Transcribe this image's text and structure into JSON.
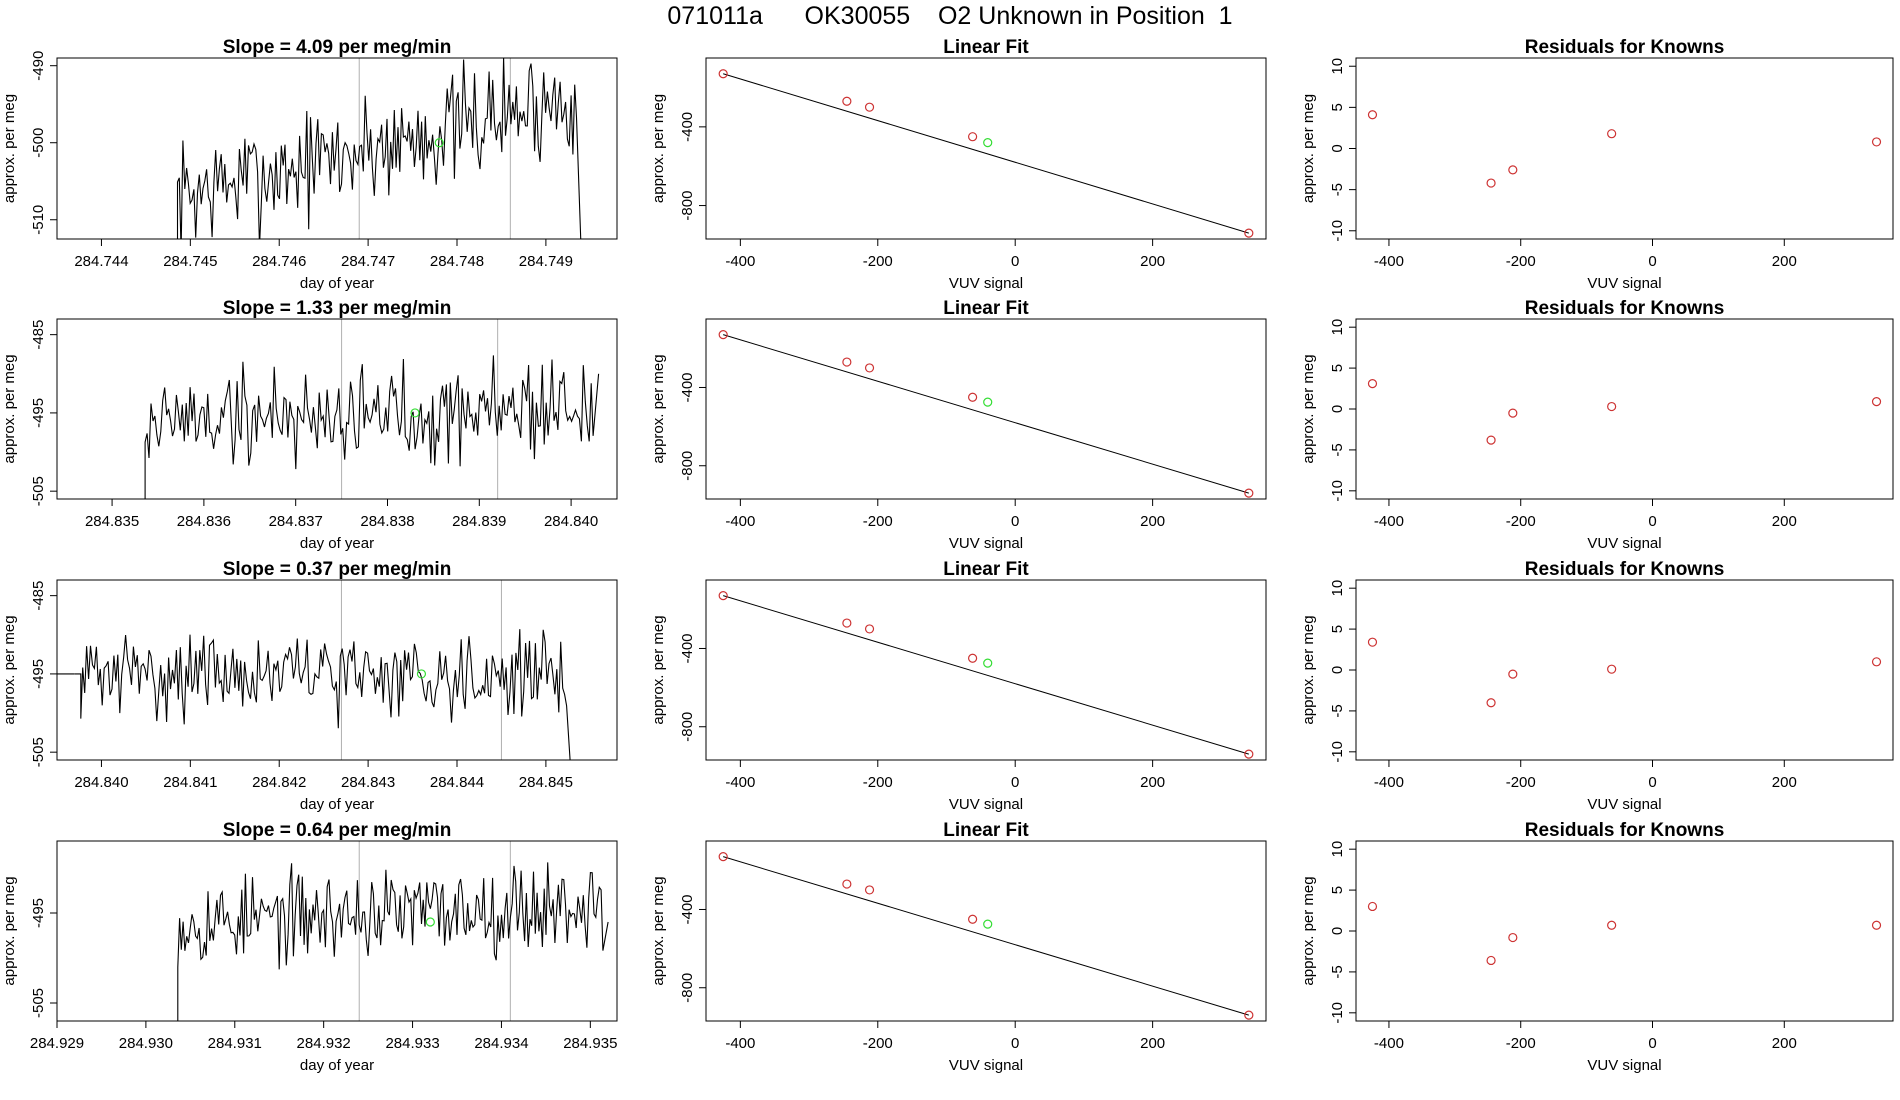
{
  "title": "071011a      OK30055    O2 Unknown in Position  1",
  "colors": {
    "axis": "#000000",
    "series": "#000000",
    "vline": "#b0b0b0",
    "known": "#cd3333",
    "unknown": "#33dd33"
  },
  "chart_data": [
    {
      "type": "line",
      "panel": "time-series",
      "row": 1,
      "title": "Slope =  4.09  per meg/min",
      "xlabel": "day of year",
      "ylabel": "approx. per meg",
      "xlim": [
        284.7435,
        284.7498
      ],
      "ylim": [
        -512.5,
        -489
      ],
      "xticks": [
        284.744,
        284.745,
        284.746,
        284.747,
        284.748,
        284.749
      ],
      "xtick_labels": [
        "284.744",
        "284.745",
        "284.746",
        "284.747",
        "284.748",
        "284.749"
      ],
      "yticks": [
        -510,
        -500,
        -490
      ],
      "ytick_labels": [
        "-510",
        "-500",
        "-490"
      ],
      "vlines": [
        284.7469,
        284.7486
      ],
      "unknown_point": {
        "x": 284.7478,
        "y": -500
      },
      "series": {
        "x_start": 284.7448,
        "x_end": 284.7494,
        "start_y": -514,
        "end_y": -515,
        "base": -507,
        "trend_end": -494,
        "noise": 4.5,
        "count": 220,
        "seed": 7
      }
    },
    {
      "type": "scatter",
      "panel": "linear-fit",
      "row": 1,
      "title": "Linear Fit",
      "xlabel": "VUV signal",
      "ylabel": "approx. per meg",
      "xlim": [
        -450,
        365
      ],
      "ylim": [
        -970,
        -50
      ],
      "xticks": [
        -400,
        -200,
        0,
        200
      ],
      "xtick_labels": [
        "-400",
        "-200",
        "0",
        "200"
      ],
      "yticks": [
        -800,
        -400
      ],
      "ytick_labels": [
        "-800",
        "-400"
      ],
      "fit_line": {
        "x": [
          -425,
          340
        ],
        "y": [
          -130,
          -940
        ]
      },
      "knowns": [
        {
          "x": -425,
          "y": -130
        },
        {
          "x": -245,
          "y": -270
        },
        {
          "x": -212,
          "y": -300
        },
        {
          "x": -62,
          "y": -450
        }
      ],
      "known_end": {
        "x": 340,
        "y": -940
      },
      "unknown": {
        "x": -40,
        "y": -480
      }
    },
    {
      "type": "scatter",
      "panel": "residuals",
      "row": 1,
      "title": "Residuals for Knowns",
      "xlabel": "VUV signal",
      "ylabel": "approx. per meg",
      "xlim": [
        -450,
        365
      ],
      "ylim": [
        -11,
        11
      ],
      "xticks": [
        -400,
        -200,
        0,
        200
      ],
      "xtick_labels": [
        "-400",
        "-200",
        "0",
        "200"
      ],
      "yticks": [
        -10,
        -5,
        0,
        5,
        10
      ],
      "ytick_labels": [
        "-10",
        "-5",
        "0",
        "5",
        "10"
      ],
      "points": [
        {
          "x": -425,
          "y": 4.1
        },
        {
          "x": -245,
          "y": -4.2
        },
        {
          "x": -212,
          "y": -2.6
        },
        {
          "x": -62,
          "y": 1.8
        },
        {
          "x": 340,
          "y": 0.8
        }
      ]
    },
    {
      "type": "line",
      "panel": "time-series",
      "row": 2,
      "title": "Slope =  1.33  per meg/min",
      "xlabel": "day of year",
      "ylabel": "approx. per meg",
      "xlim": [
        284.8344,
        284.8405
      ],
      "ylim": [
        -506,
        -483
      ],
      "xticks": [
        284.835,
        284.836,
        284.837,
        284.838,
        284.839,
        284.84
      ],
      "xtick_labels": [
        "284.835",
        "284.836",
        "284.837",
        "284.838",
        "284.839",
        "284.840"
      ],
      "yticks": [
        -505,
        -495,
        -485
      ],
      "ytick_labels": [
        "-505",
        "-495",
        "-485"
      ],
      "vlines": [
        284.8375,
        284.8392
      ],
      "unknown_point": {
        "x": 284.8383,
        "y": -495
      },
      "series": {
        "x_start": 284.8353,
        "x_end": 284.8403,
        "start_y": -509,
        "end_y": -490,
        "base": -496,
        "trend_end": -494,
        "noise": 4.0,
        "count": 230,
        "seed": 19
      }
    },
    {
      "type": "scatter",
      "panel": "linear-fit",
      "row": 2,
      "title": "Linear Fit",
      "xlabel": "VUV signal",
      "ylabel": "approx. per meg",
      "xlim": [
        -450,
        365
      ],
      "ylim": [
        -970,
        -50
      ],
      "xticks": [
        -400,
        -200,
        0,
        200
      ],
      "xtick_labels": [
        "-400",
        "-200",
        "0",
        "200"
      ],
      "yticks": [
        -800,
        -400
      ],
      "ytick_labels": [
        "-800",
        "-400"
      ],
      "fit_line": {
        "x": [
          -425,
          340
        ],
        "y": [
          -130,
          -940
        ]
      },
      "knowns": [
        {
          "x": -425,
          "y": -130
        },
        {
          "x": -245,
          "y": -270
        },
        {
          "x": -212,
          "y": -300
        },
        {
          "x": -62,
          "y": -450
        }
      ],
      "known_end": {
        "x": 340,
        "y": -940
      },
      "unknown": {
        "x": -40,
        "y": -475
      }
    },
    {
      "type": "scatter",
      "panel": "residuals",
      "row": 2,
      "title": "Residuals for Knowns",
      "xlabel": "VUV signal",
      "ylabel": "approx. per meg",
      "xlim": [
        -450,
        365
      ],
      "ylim": [
        -11,
        11
      ],
      "xticks": [
        -400,
        -200,
        0,
        200
      ],
      "xtick_labels": [
        "-400",
        "-200",
        "0",
        "200"
      ],
      "yticks": [
        -10,
        -5,
        0,
        5,
        10
      ],
      "ytick_labels": [
        "-10",
        "-5",
        "0",
        "5",
        "10"
      ],
      "points": [
        {
          "x": -425,
          "y": 3.1
        },
        {
          "x": -245,
          "y": -3.8
        },
        {
          "x": -212,
          "y": -0.5
        },
        {
          "x": -62,
          "y": 0.3
        },
        {
          "x": 340,
          "y": 0.9
        }
      ]
    },
    {
      "type": "line",
      "panel": "time-series",
      "row": 3,
      "title": "Slope =  0.37  per meg/min",
      "xlabel": "day of year",
      "ylabel": "approx. per meg",
      "xlim": [
        284.8395,
        284.8458
      ],
      "ylim": [
        -506,
        -483
      ],
      "xticks": [
        284.84,
        284.841,
        284.842,
        284.843,
        284.844,
        284.845
      ],
      "xtick_labels": [
        "284.840",
        "284.841",
        "284.842",
        "284.843",
        "284.844",
        "284.845"
      ],
      "yticks": [
        -505,
        -495,
        -485
      ],
      "ytick_labels": [
        "-505",
        "-495",
        "-485"
      ],
      "vlines": [
        284.8427,
        284.8445
      ],
      "unknown_point": {
        "x": 284.8436,
        "y": -495
      },
      "series": {
        "x_start": 284.8397,
        "x_end": 284.8453,
        "start_y": -495,
        "end_y": -511,
        "base": -495,
        "trend_end": -495,
        "noise": 3.2,
        "count": 250,
        "seed": 31
      }
    },
    {
      "type": "scatter",
      "panel": "linear-fit",
      "row": 3,
      "title": "Linear Fit",
      "xlabel": "VUV signal",
      "ylabel": "approx. per meg",
      "xlim": [
        -450,
        365
      ],
      "ylim": [
        -970,
        -50
      ],
      "xticks": [
        -400,
        -200,
        0,
        200
      ],
      "xtick_labels": [
        "-400",
        "-200",
        "0",
        "200"
      ],
      "yticks": [
        -800,
        -400
      ],
      "ytick_labels": [
        "-800",
        "-400"
      ],
      "fit_line": {
        "x": [
          -425,
          340
        ],
        "y": [
          -130,
          -940
        ]
      },
      "knowns": [
        {
          "x": -425,
          "y": -130
        },
        {
          "x": -245,
          "y": -270
        },
        {
          "x": -212,
          "y": -300
        },
        {
          "x": -62,
          "y": -450
        }
      ],
      "known_end": {
        "x": 340,
        "y": -940
      },
      "unknown": {
        "x": -40,
        "y": -475
      }
    },
    {
      "type": "scatter",
      "panel": "residuals",
      "row": 3,
      "title": "Residuals for Knowns",
      "xlabel": "VUV signal",
      "ylabel": "approx. per meg",
      "xlim": [
        -450,
        365
      ],
      "ylim": [
        -11,
        11
      ],
      "xticks": [
        -400,
        -200,
        0,
        200
      ],
      "xtick_labels": [
        "-400",
        "-200",
        "0",
        "200"
      ],
      "yticks": [
        -10,
        -5,
        0,
        5,
        10
      ],
      "ytick_labels": [
        "-10",
        "-5",
        "0",
        "5",
        "10"
      ],
      "points": [
        {
          "x": -425,
          "y": 3.4
        },
        {
          "x": -245,
          "y": -4.0
        },
        {
          "x": -212,
          "y": -0.5
        },
        {
          "x": -62,
          "y": 0.1
        },
        {
          "x": 340,
          "y": 1.0
        }
      ]
    },
    {
      "type": "line",
      "panel": "time-series",
      "row": 4,
      "title": "Slope =  0.64  per meg/min",
      "xlabel": "day of year",
      "ylabel": "approx. per meg",
      "xlim": [
        284.929,
        284.9353
      ],
      "ylim": [
        -507,
        -487
      ],
      "xticks": [
        284.929,
        284.93,
        284.931,
        284.932,
        284.933,
        284.934,
        284.935
      ],
      "xtick_labels": [
        "284.929",
        "284.930",
        "284.931",
        "284.932",
        "284.933",
        "284.934",
        "284.935"
      ],
      "yticks": [
        -505,
        -495
      ],
      "ytick_labels": [
        "-505",
        "-495"
      ],
      "vlines": [
        284.9324,
        284.9341
      ],
      "unknown_point": {
        "x": 284.9332,
        "y": -496
      },
      "series": {
        "x_start": 284.9303,
        "x_end": 284.9352,
        "start_y": -509,
        "end_y": -496,
        "base": -496,
        "trend_end": -494,
        "noise": 3.0,
        "count": 240,
        "seed": 53
      }
    },
    {
      "type": "scatter",
      "panel": "linear-fit",
      "row": 4,
      "title": "Linear Fit",
      "xlabel": "VUV signal",
      "ylabel": "approx. per meg",
      "xlim": [
        -450,
        365
      ],
      "ylim": [
        -970,
        -50
      ],
      "xticks": [
        -400,
        -200,
        0,
        200
      ],
      "xtick_labels": [
        "-400",
        "-200",
        "0",
        "200"
      ],
      "yticks": [
        -800,
        -400
      ],
      "ytick_labels": [
        "-800",
        "-400"
      ],
      "fit_line": {
        "x": [
          -425,
          340
        ],
        "y": [
          -130,
          -940
        ]
      },
      "knowns": [
        {
          "x": -425,
          "y": -130
        },
        {
          "x": -245,
          "y": -270
        },
        {
          "x": -212,
          "y": -300
        },
        {
          "x": -62,
          "y": -450
        }
      ],
      "known_end": {
        "x": 340,
        "y": -940
      },
      "unknown": {
        "x": -40,
        "y": -475
      }
    },
    {
      "type": "scatter",
      "panel": "residuals",
      "row": 4,
      "title": "Residuals for Knowns",
      "xlabel": "VUV signal",
      "ylabel": "approx. per meg",
      "xlim": [
        -450,
        365
      ],
      "ylim": [
        -11,
        11
      ],
      "xticks": [
        -400,
        -200,
        0,
        200
      ],
      "xtick_labels": [
        "-400",
        "-200",
        "0",
        "200"
      ],
      "yticks": [
        -10,
        -5,
        0,
        5,
        10
      ],
      "ytick_labels": [
        "-10",
        "-5",
        "0",
        "5",
        "10"
      ],
      "points": [
        {
          "x": -425,
          "y": 3.0
        },
        {
          "x": -245,
          "y": -3.6
        },
        {
          "x": -212,
          "y": -0.8
        },
        {
          "x": -62,
          "y": 0.7
        },
        {
          "x": 340,
          "y": 0.7
        }
      ]
    }
  ]
}
